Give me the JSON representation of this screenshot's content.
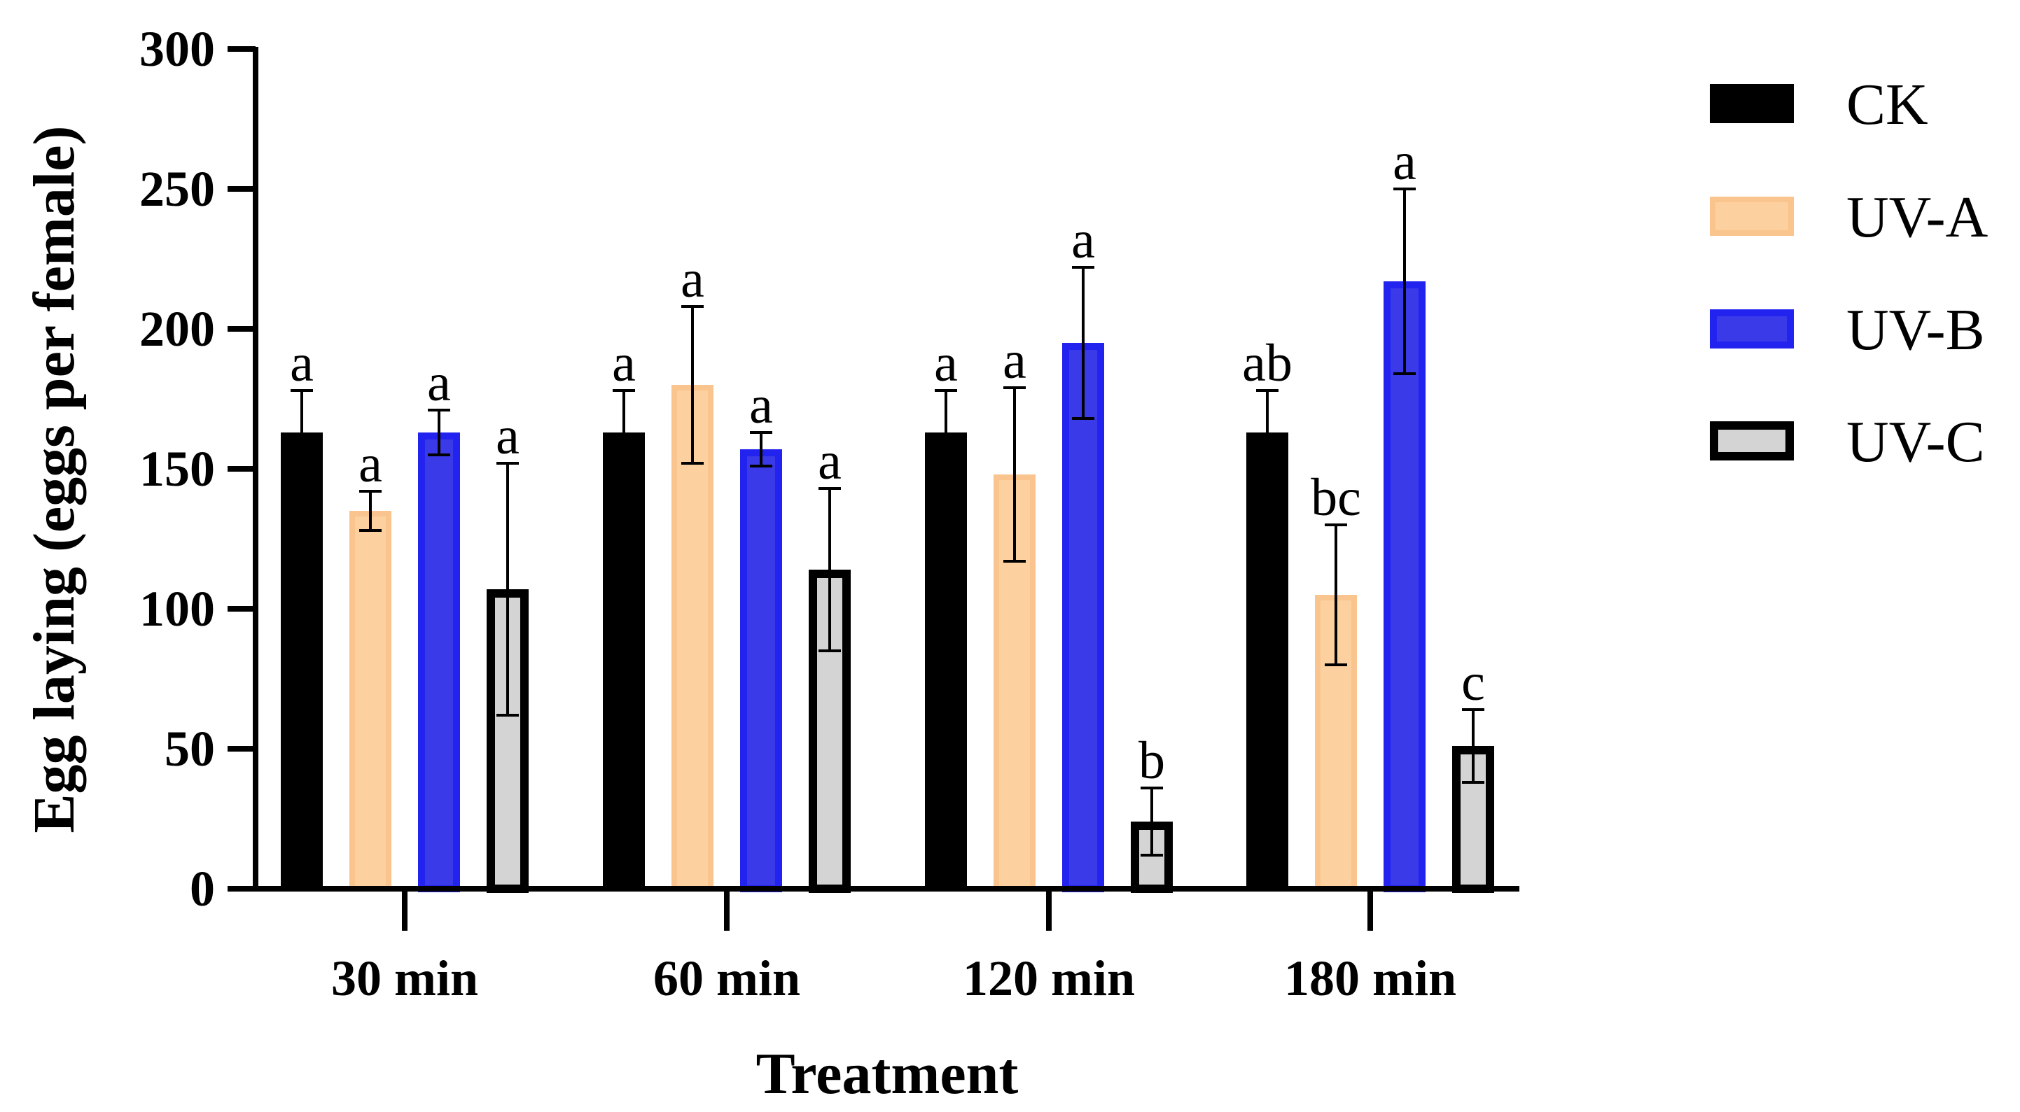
{
  "chart_data": {
    "type": "bar",
    "title": "",
    "xlabel": "Treatment",
    "ylabel": "Egg laying (eggs per female)",
    "ylim": [
      0,
      300
    ],
    "yticks": [
      0,
      50,
      100,
      150,
      200,
      250,
      300
    ],
    "ytick_labels": [
      "0",
      "50",
      "100",
      "150",
      "200",
      "250",
      "300"
    ],
    "categories": [
      "30 min",
      "60 min",
      "120 min",
      "180 min"
    ],
    "legend_position": "right",
    "series": [
      {
        "name": "CK",
        "fill": "#000000",
        "stroke": "#000000",
        "values": [
          163,
          163,
          163,
          163
        ],
        "errors": [
          15,
          15,
          15,
          15
        ],
        "letters": [
          "a",
          "a",
          "a",
          "ab"
        ]
      },
      {
        "name": "UV-A",
        "fill": "#fdd09f",
        "stroke": "#f9c48e",
        "values": [
          135,
          180,
          148,
          105
        ],
        "errors": [
          7,
          28,
          31,
          25
        ],
        "letters": [
          "a",
          "a",
          "a",
          "bc"
        ]
      },
      {
        "name": "UV-B",
        "fill": "#3a3ae8",
        "stroke": "#2323f0",
        "values": [
          163,
          157,
          195,
          217
        ],
        "errors": [
          8,
          6,
          27,
          33
        ],
        "letters": [
          "a",
          "a",
          "a",
          "a"
        ]
      },
      {
        "name": "UV-C",
        "fill": "#d4d4d4",
        "stroke": "#000000",
        "values": [
          107,
          114,
          24,
          51
        ],
        "errors": [
          45,
          29,
          12,
          13
        ],
        "letters": [
          "a",
          "a",
          "b",
          "c"
        ]
      }
    ]
  }
}
